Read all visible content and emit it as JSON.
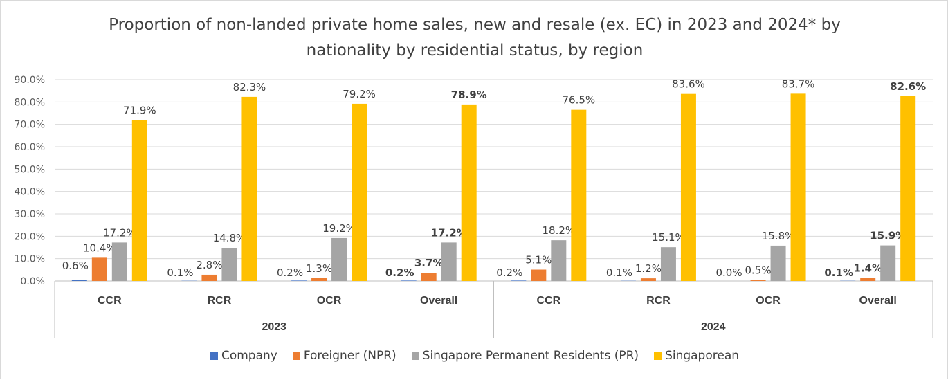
{
  "chart_data": {
    "type": "bar",
    "title": "Proportion of non-landed private home sales, new and resale (ex. EC) in 2023 and 2024* by nationality by residential status, by region",
    "title_lines": [
      "Proportion of non-landed private home sales, new and resale (ex. EC) in 2023 and 2024* by",
      "nationality by residential status, by region"
    ],
    "groups": [
      {
        "label": "2023",
        "categories": [
          "CCR",
          "RCR",
          "OCR",
          "Overall"
        ]
      },
      {
        "label": "2024",
        "categories": [
          "CCR",
          "RCR",
          "OCR",
          "Overall"
        ]
      }
    ],
    "categories": [
      "CCR",
      "RCR",
      "OCR",
      "Overall",
      "CCR",
      "RCR",
      "OCR",
      "Overall"
    ],
    "series": [
      {
        "name": "Company",
        "color": "#4472c4",
        "values": [
          0.6,
          0.1,
          0.2,
          0.2,
          0.2,
          0.1,
          0.0,
          0.1
        ],
        "labels": [
          "0.6%",
          "0.1%",
          "0.2%",
          "0.2%",
          "0.2%",
          "0.1%",
          "0.0%",
          "0.1%"
        ]
      },
      {
        "name": "Foreigner (NPR)",
        "color": "#ed7d31",
        "values": [
          10.4,
          2.8,
          1.3,
          3.7,
          5.1,
          1.2,
          0.5,
          1.4
        ],
        "labels": [
          "10.4%",
          "2.8%",
          "1.3%",
          "3.7%",
          "5.1%",
          "1.2%",
          "0.5%",
          "1.4%"
        ]
      },
      {
        "name": "Singapore Permanent Residents (PR)",
        "color": "#a5a5a5",
        "values": [
          17.2,
          14.8,
          19.2,
          17.2,
          18.2,
          15.1,
          15.8,
          15.9
        ],
        "labels": [
          "17.2%",
          "14.8%",
          "19.2%",
          "17.2%",
          "18.2%",
          "15.1%",
          "15.8%",
          "15.9%"
        ]
      },
      {
        "name": "Singaporean",
        "color": "#ffc000",
        "values": [
          71.9,
          82.3,
          79.2,
          78.9,
          76.5,
          83.6,
          83.7,
          82.6
        ],
        "labels": [
          "71.9%",
          "82.3%",
          "79.2%",
          "78.9%",
          "76.5%",
          "83.6%",
          "83.7%",
          "82.6%"
        ]
      }
    ],
    "ylim": [
      0,
      90
    ],
    "y_ticks": [
      "0.0%",
      "10.0%",
      "20.0%",
      "30.0%",
      "40.0%",
      "50.0%",
      "60.0%",
      "70.0%",
      "80.0%",
      "90.0%"
    ],
    "bold_categories": [
      "Overall"
    ],
    "grid": true,
    "legend_position": "bottom"
  }
}
